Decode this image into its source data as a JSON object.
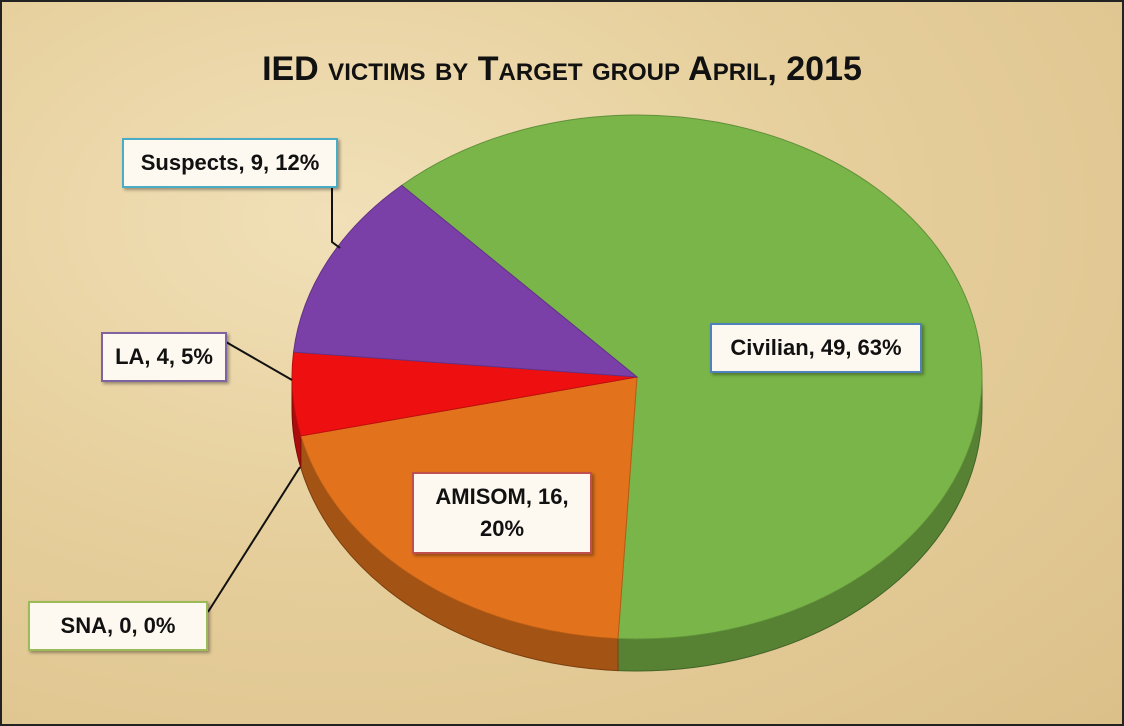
{
  "chart_data": {
    "type": "pie",
    "title": "IED victims by Target group April, 2015",
    "values": [
      49,
      16,
      0,
      4,
      9
    ],
    "value_labels": [
      "Civilian, 49, 63%",
      "AMISOM, 16, 20%",
      "SNA, 0, 0%",
      "LA, 4, 5%",
      "Suspects, 9, 12%"
    ],
    "colors": [
      "#79b548",
      "#e2731c",
      "#c9650f",
      "#ee1010",
      "#7b40a8"
    ]
  }
}
